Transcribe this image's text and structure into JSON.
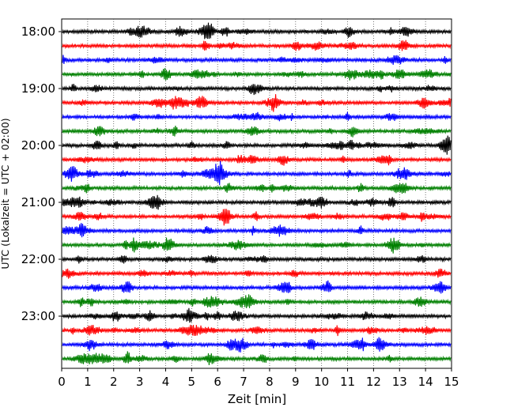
{
  "chart_data": {
    "type": "line",
    "title": "",
    "xlabel": "Zeit  [min]",
    "ylabel": "UTC (Lokalzeit = UTC + 02:00)",
    "xlim": [
      0,
      15
    ],
    "x_ticks": [
      "0",
      "1",
      "2",
      "3",
      "4",
      "5",
      "6",
      "7",
      "8",
      "9",
      "10",
      "11",
      "12",
      "13",
      "14",
      "15"
    ],
    "y_ticks": [
      "18:00",
      "19:00",
      "20:00",
      "21:00",
      "22:00",
      "23:00"
    ],
    "grid": "vertical dotted",
    "line_interval_minutes": 15,
    "color_cycle": [
      "#000000",
      "#ff0000",
      "#0000ff",
      "#008000"
    ],
    "traces": [
      {
        "start": "18:00",
        "color": "#000000"
      },
      {
        "start": "18:15",
        "color": "#ff0000"
      },
      {
        "start": "18:30",
        "color": "#0000ff"
      },
      {
        "start": "18:45",
        "color": "#008000"
      },
      {
        "start": "19:00",
        "color": "#000000"
      },
      {
        "start": "19:15",
        "color": "#ff0000"
      },
      {
        "start": "19:30",
        "color": "#0000ff"
      },
      {
        "start": "19:45",
        "color": "#008000"
      },
      {
        "start": "20:00",
        "color": "#000000"
      },
      {
        "start": "20:15",
        "color": "#ff0000"
      },
      {
        "start": "20:30",
        "color": "#0000ff"
      },
      {
        "start": "20:45",
        "color": "#008000"
      },
      {
        "start": "21:00",
        "color": "#000000"
      },
      {
        "start": "21:15",
        "color": "#ff0000"
      },
      {
        "start": "21:30",
        "color": "#0000ff"
      },
      {
        "start": "21:45",
        "color": "#008000"
      },
      {
        "start": "22:00",
        "color": "#000000"
      },
      {
        "start": "22:15",
        "color": "#ff0000"
      },
      {
        "start": "22:30",
        "color": "#0000ff"
      },
      {
        "start": "22:45",
        "color": "#008000"
      },
      {
        "start": "23:00",
        "color": "#000000"
      },
      {
        "start": "23:15",
        "color": "#ff0000"
      },
      {
        "start": "23:30",
        "color": "#0000ff"
      },
      {
        "start": "23:45",
        "color": "#008000"
      }
    ]
  }
}
